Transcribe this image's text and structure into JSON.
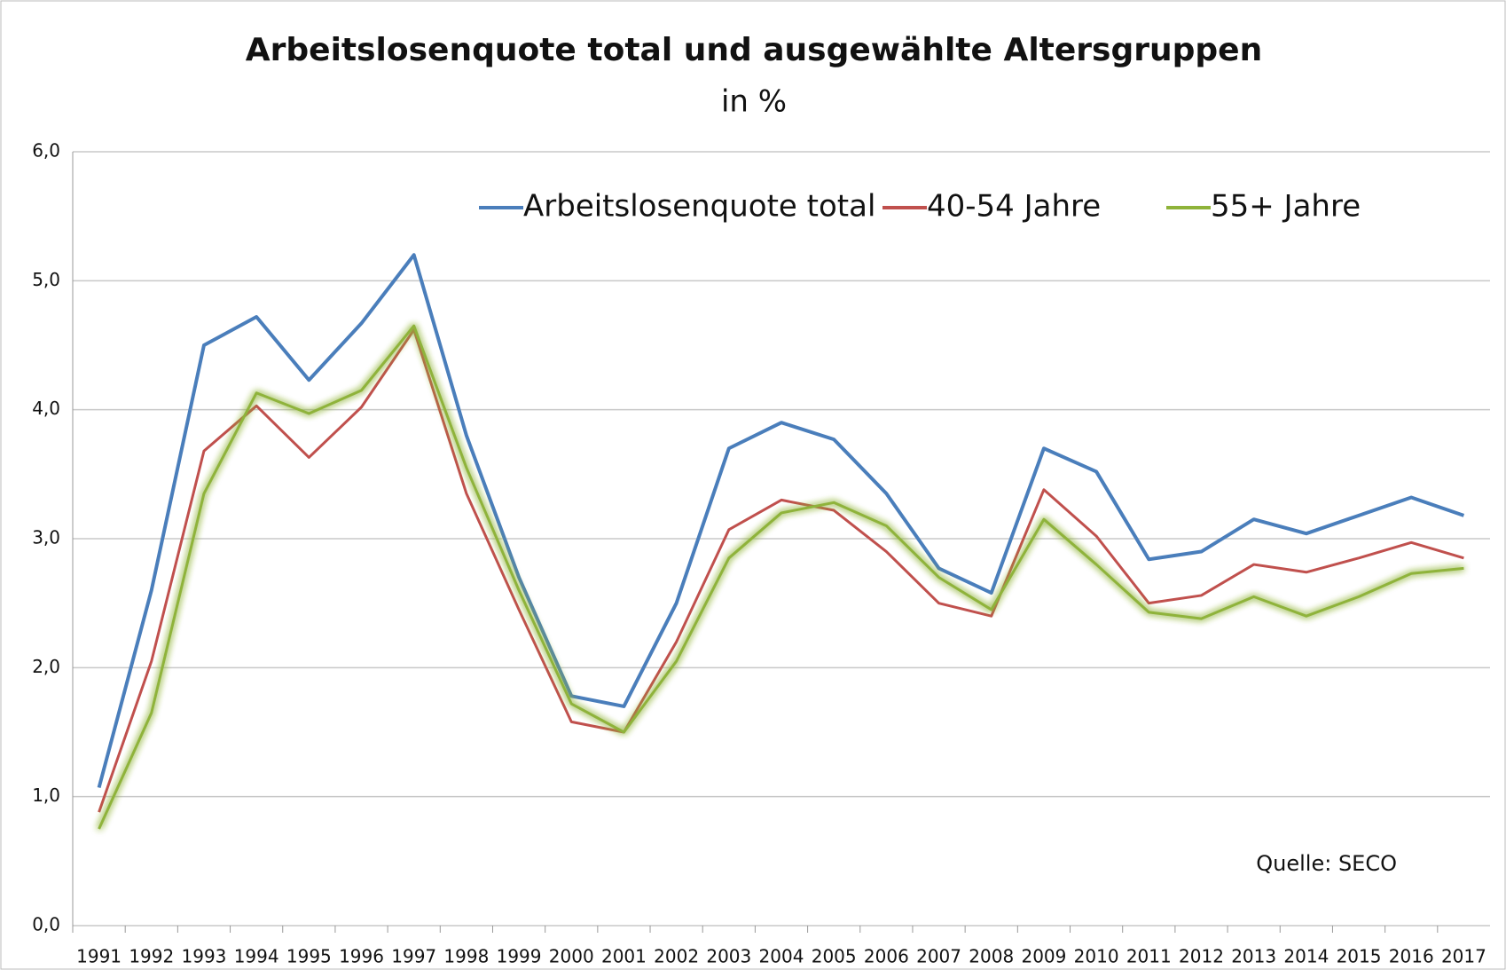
{
  "chart_data": {
    "type": "line",
    "title": "Arbeitslosenquote total und ausgewählte Altersgruppen",
    "subtitle": "in %",
    "annotation": "Quelle: SECO",
    "categories": [
      "1991",
      "1992",
      "1993",
      "1994",
      "1995",
      "1996",
      "1997",
      "1998",
      "1999",
      "2000",
      "2001",
      "2002",
      "2003",
      "2004",
      "2005",
      "2006",
      "2007",
      "2008",
      "2009",
      "2010",
      "2011",
      "2012",
      "2013",
      "2014",
      "2015",
      "2016",
      "2017"
    ],
    "series": [
      {
        "name": "Arbeitslosenquote total",
        "color": "#4a7ebb",
        "values": [
          1.07,
          2.6,
          4.5,
          4.72,
          4.23,
          4.67,
          5.2,
          3.8,
          2.7,
          1.78,
          1.7,
          2.5,
          3.7,
          3.9,
          3.77,
          3.35,
          2.77,
          2.58,
          3.7,
          3.52,
          2.84,
          2.9,
          3.15,
          3.04,
          3.18,
          3.32,
          3.18
        ]
      },
      {
        "name": "40-54 Jahre",
        "color": "#c0504d",
        "values": [
          0.88,
          2.05,
          3.68,
          4.03,
          3.63,
          4.02,
          4.62,
          3.35,
          2.45,
          1.58,
          1.5,
          2.2,
          3.07,
          3.3,
          3.22,
          2.9,
          2.5,
          2.4,
          3.38,
          3.02,
          2.5,
          2.56,
          2.8,
          2.74,
          2.85,
          2.97,
          2.85
        ]
      },
      {
        "name": "55+ Jahre",
        "color": "#8fb33a",
        "values": [
          0.75,
          1.65,
          3.35,
          4.13,
          3.97,
          4.15,
          4.65,
          3.55,
          2.6,
          1.72,
          1.5,
          2.05,
          2.85,
          3.2,
          3.28,
          3.1,
          2.7,
          2.45,
          3.15,
          2.8,
          2.43,
          2.38,
          2.55,
          2.4,
          2.55,
          2.73,
          2.77
        ]
      }
    ],
    "ylim": [
      0,
      6
    ],
    "yticks": [
      {
        "value": 0,
        "label": "0,0"
      },
      {
        "value": 1,
        "label": "1,0"
      },
      {
        "value": 2,
        "label": "2,0"
      },
      {
        "value": 3,
        "label": "3,0"
      },
      {
        "value": 4,
        "label": "4,0"
      },
      {
        "value": 5,
        "label": "5,0"
      },
      {
        "value": 6,
        "label": "6,0"
      }
    ],
    "grid": true,
    "legend": "top"
  }
}
